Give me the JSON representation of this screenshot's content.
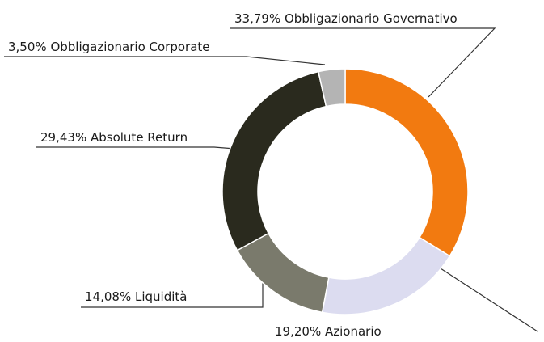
{
  "chart_data": {
    "type": "donut",
    "categories": [
      "Obbligazionario Governativo",
      "Azionario",
      "Liquidità",
      "Absolute Return",
      "Obbligazionario Corporate"
    ],
    "values": [
      33.79,
      19.2,
      14.08,
      29.43,
      3.5
    ],
    "value_labels": [
      "33,79%",
      "19,20%",
      "14,08%",
      "29,43%",
      "3,50%"
    ],
    "colors": [
      "#f27a10",
      "#dcdcf0",
      "#7a7a6c",
      "#2a2a1e",
      "#b4b4b4"
    ]
  }
}
